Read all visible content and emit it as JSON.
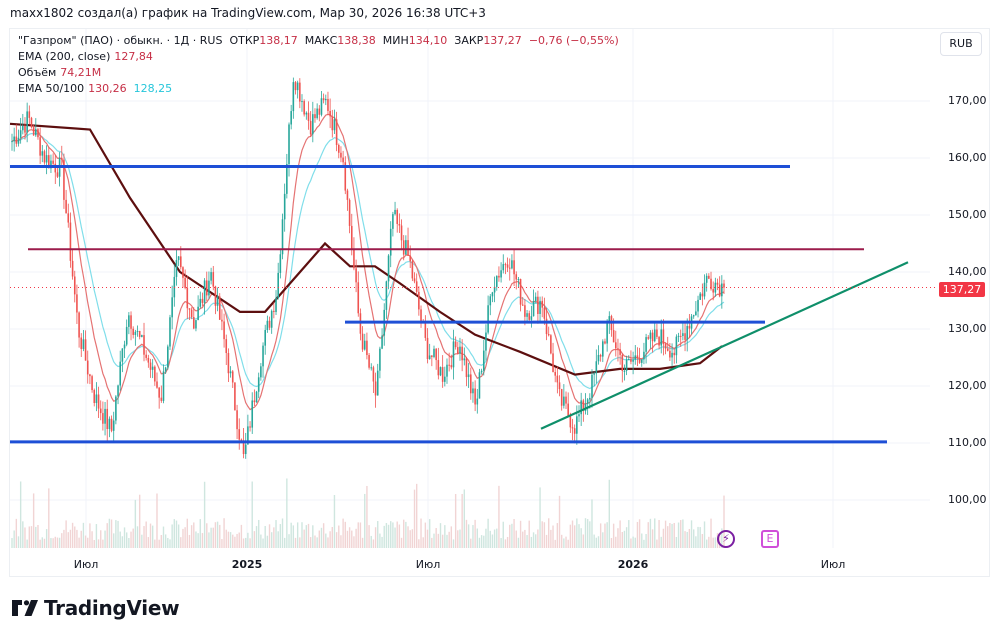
{
  "caption": "maxx1802 создал(а) график на TradingView.com, Мар 30, 2026 16:38 UTC+3",
  "legend": {
    "symbol": "\"Газпром\" (ПАО) · обыкн. · 1Д · RUS",
    "open_label": "ОТКР",
    "open": "138,17",
    "high_label": "МАКС",
    "high": "138,38",
    "low_label": "МИН",
    "low": "134,10",
    "close_label": "ЗАКР",
    "close": "137,27",
    "change": "−0,76 (−0,55%)",
    "ema200_label": "EMA (200, close)",
    "ema200_value": "127,84",
    "volume_label": "Объём",
    "volume_value": "74,21M",
    "ema50_100_label": "EMA 50/100",
    "ema50_value": "130,26",
    "ema100_value": "128,25"
  },
  "price_axis": {
    "currency": "RUB",
    "ticks": [
      "170,00",
      "160,00",
      "150,00",
      "140,00",
      "130,00",
      "120,00",
      "110,00",
      "100,00"
    ],
    "last_price": "137,27"
  },
  "time_axis": {
    "ticks": [
      {
        "label": "Июл",
        "year": false
      },
      {
        "label": "2025",
        "year": true
      },
      {
        "label": "Июл",
        "year": false
      },
      {
        "label": "2026",
        "year": true
      },
      {
        "label": "Июл",
        "year": false
      }
    ]
  },
  "events": {
    "dividend_icon": "flash-icon",
    "earnings_icon": "earnings-icon",
    "earnings_glyph": "E",
    "flash_glyph": "⚡"
  },
  "brand": {
    "name": "TradingView"
  },
  "colors": {
    "up": "#26a69a",
    "down": "#ef5350",
    "ema200": "#5d0f0f",
    "ema50": "#e57373",
    "ema100": "#80deea",
    "level_blue": "#1e4fd6",
    "level_magenta": "#9c1c4b",
    "trend_green": "#0f8f6a",
    "last_price": "#f23645"
  },
  "chart_data": {
    "type": "candlestick",
    "title": "\"Газпром\" (ПАО) · обыкн. · 1Д · RUS",
    "xlabel": "",
    "ylabel": "RUB",
    "ylim": [
      95,
      178
    ],
    "x_ticks": [
      "Июл 2024",
      "2025",
      "Июл 2025",
      "2026",
      "Июл 2026"
    ],
    "last": {
      "open": 138.17,
      "high": 138.38,
      "low": 134.1,
      "close": 137.27,
      "change": -0.76,
      "change_pct": -0.55
    },
    "indicators": {
      "EMA200": 127.84,
      "EMA50": 130.26,
      "EMA100": 128.25,
      "Volume": "74.21M"
    },
    "price_path": [
      [
        "2024-04",
        163
      ],
      [
        "2024-05",
        167
      ],
      [
        "2024-05b",
        160
      ],
      [
        "2024-06",
        158
      ],
      [
        "2024-06b",
        130
      ],
      [
        "2024-07",
        118
      ],
      [
        "2024-07b",
        112
      ],
      [
        "2024-08",
        133
      ],
      [
        "2024-08b",
        126
      ],
      [
        "2024-09",
        118
      ],
      [
        "2024-09b",
        142
      ],
      [
        "2024-10",
        131
      ],
      [
        "2024-10b",
        140
      ],
      [
        "2024-11",
        125
      ],
      [
        "2024-12",
        107
      ],
      [
        "2025-01",
        125
      ],
      [
        "2025-01b",
        137
      ],
      [
        "2025-02",
        175
      ],
      [
        "2025-02b",
        166
      ],
      [
        "2025-03",
        170
      ],
      [
        "2025-03b",
        160
      ],
      [
        "2025-04",
        130
      ],
      [
        "2025-04b",
        118
      ],
      [
        "2025-05",
        150
      ],
      [
        "2025-05b",
        142
      ],
      [
        "2025-06",
        127
      ],
      [
        "2025-06b",
        122
      ],
      [
        "2025-07",
        128
      ],
      [
        "2025-07b",
        116
      ],
      [
        "2025-08",
        138
      ],
      [
        "2025-08b",
        143
      ],
      [
        "2025-09",
        133
      ],
      [
        "2025-09b",
        135
      ],
      [
        "2025-10",
        118
      ],
      [
        "2025-10b",
        113
      ],
      [
        "2025-11",
        120
      ],
      [
        "2025-12",
        131
      ],
      [
        "2025-12b",
        123
      ],
      [
        "2026-01",
        126
      ],
      [
        "2026-01b",
        129
      ],
      [
        "2026-02",
        126
      ],
      [
        "2026-02b",
        132
      ],
      [
        "2026-03",
        139
      ],
      [
        "2026-03b",
        137.27
      ]
    ],
    "ema200_path": [
      [
        10,
        166
      ],
      [
        90,
        165
      ],
      [
        130,
        153
      ],
      [
        180,
        140
      ],
      [
        240,
        133
      ],
      [
        265,
        133
      ],
      [
        300,
        140
      ],
      [
        325,
        145
      ],
      [
        350,
        141
      ],
      [
        375,
        141
      ],
      [
        400,
        138
      ],
      [
        440,
        133
      ],
      [
        475,
        129
      ],
      [
        520,
        126
      ],
      [
        575,
        122
      ],
      [
        620,
        123
      ],
      [
        660,
        123
      ],
      [
        700,
        124
      ],
      [
        722,
        127
      ]
    ],
    "horizontal_levels": [
      {
        "price": 158.5,
        "x_from": 10,
        "x_to": 790,
        "color": "blue"
      },
      {
        "price": 144,
        "x_from": 28,
        "x_to": 864,
        "color": "magenta"
      },
      {
        "price": 131.2,
        "x_from": 345,
        "x_to": 765,
        "color": "blue"
      },
      {
        "price": 110.2,
        "x_from": 10,
        "x_to": 887,
        "color": "blue"
      }
    ],
    "trendline": {
      "from": [
        541,
        112.5
      ],
      "to": [
        908,
        141.7
      ]
    }
  }
}
